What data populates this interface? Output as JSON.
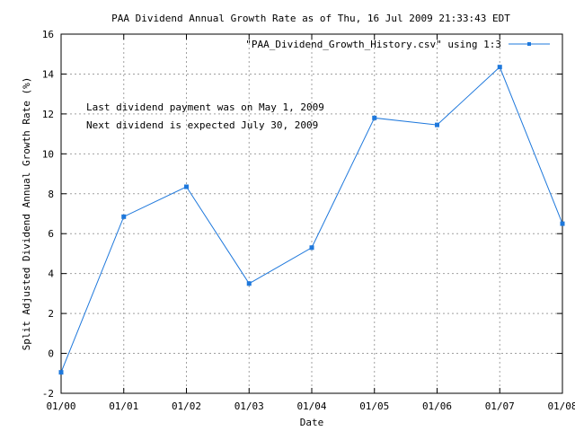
{
  "chart_data": {
    "type": "line",
    "title": "PAA Dividend Annual Growth Rate as of Thu, 16 Jul 2009 21:33:43 EDT",
    "xlabel": "Date",
    "ylabel": "Split Adjusted Dividend Annual Growth Rate (%)",
    "x_ticks": [
      "01/00",
      "01/01",
      "01/02",
      "01/03",
      "01/04",
      "01/05",
      "01/06",
      "01/07",
      "01/08"
    ],
    "y_ticks": [
      -2,
      0,
      2,
      4,
      6,
      8,
      10,
      12,
      14,
      16
    ],
    "ylim": [
      -2,
      16
    ],
    "xlim": [
      "01/00",
      "01/08"
    ],
    "grid": true,
    "legend_position": "top-right",
    "series": [
      {
        "name": "\"PAA_Dividend_Growth_History.csv\" using 1:3",
        "color": "#1e78dc",
        "x": [
          "2000-01",
          "2001-01",
          "2002-01",
          "2003-01",
          "2004-01",
          "2005-01",
          "2006-01",
          "2007-01",
          "2008-01"
        ],
        "values": [
          -0.95,
          6.85,
          8.35,
          3.5,
          5.3,
          11.8,
          11.45,
          14.35,
          6.5
        ]
      }
    ],
    "annotations": [
      "Last dividend payment was on May 1, 2009",
      "Next dividend is expected July 30, 2009"
    ]
  }
}
